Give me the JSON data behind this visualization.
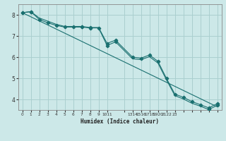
{
  "xlabel": "Humidex (Indice chaleur)",
  "bg_color": "#cce8e8",
  "grid_color": "#aacfcf",
  "line_color": "#1a7070",
  "xlim": [
    -0.5,
    23.5
  ],
  "ylim": [
    3.5,
    8.5
  ],
  "yticks": [
    4,
    5,
    6,
    7,
    8
  ],
  "line1_x": [
    0,
    1,
    2,
    3,
    4,
    5,
    6,
    7,
    8,
    9,
    10,
    11,
    13,
    14,
    15,
    16,
    17,
    18,
    19,
    20,
    21,
    22,
    23
  ],
  "line1_y": [
    8.1,
    8.15,
    7.85,
    7.7,
    7.55,
    7.45,
    7.45,
    7.45,
    7.4,
    7.4,
    6.65,
    6.8,
    6.0,
    5.95,
    6.1,
    5.8,
    5.0,
    4.25,
    4.1,
    3.9,
    3.75,
    3.6,
    3.8
  ],
  "line1_marker_x": [
    0,
    1,
    7,
    8,
    10,
    11,
    13,
    14,
    15,
    16,
    17,
    18,
    19,
    20,
    21,
    22,
    23
  ],
  "line1_marker_y": [
    8.1,
    8.15,
    7.45,
    7.4,
    6.65,
    6.8,
    6.0,
    5.95,
    6.1,
    5.8,
    5.0,
    4.25,
    4.1,
    3.9,
    3.75,
    3.6,
    3.8
  ],
  "line2_x": [
    0,
    1,
    2,
    3,
    4,
    5,
    6,
    7,
    8,
    9,
    10,
    11,
    13,
    14,
    15,
    16,
    17,
    18,
    19,
    20,
    21,
    22,
    23
  ],
  "line2_y": [
    8.1,
    8.15,
    7.78,
    7.62,
    7.5,
    7.42,
    7.42,
    7.42,
    7.38,
    7.38,
    6.55,
    6.72,
    5.92,
    5.88,
    6.02,
    5.72,
    4.93,
    4.18,
    4.02,
    3.82,
    3.68,
    3.52,
    3.72
  ],
  "line2_marker_x": [
    0,
    1,
    2,
    3,
    4,
    5,
    6,
    7,
    8,
    9,
    10,
    11,
    22,
    23
  ],
  "line2_marker_y": [
    8.1,
    8.15,
    7.78,
    7.62,
    7.5,
    7.42,
    7.42,
    7.42,
    7.38,
    7.38,
    6.55,
    6.72,
    3.52,
    3.72
  ],
  "line3_x": [
    0,
    23
  ],
  "line3_y": [
    8.1,
    3.65
  ],
  "xtick_pos": [
    0,
    1,
    2,
    3,
    4,
    5,
    6,
    7,
    8,
    9,
    10,
    12,
    13,
    14,
    15,
    16,
    17,
    18,
    19,
    20,
    21,
    22,
    23
  ],
  "xtick_lbl": [
    "0",
    "1",
    "2",
    "3",
    "4",
    "5",
    "6",
    "7",
    "8",
    "9",
    "1011",
    "",
    "1314",
    "1516",
    "1718",
    "1920",
    "2122",
    "23",
    "",
    "",
    "",
    "",
    ""
  ]
}
